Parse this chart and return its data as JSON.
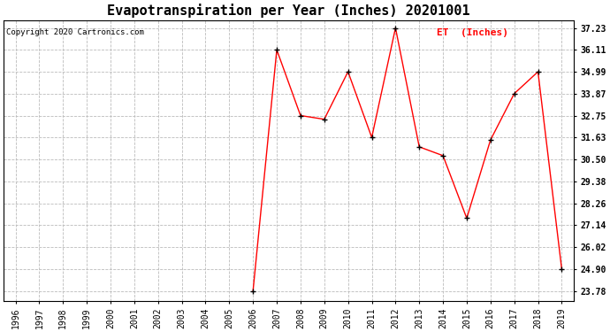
{
  "title": "Evapotranspiration per Year (Inches) 20201001",
  "copyright": "Copyright 2020 Cartronics.com",
  "legend_label": "ET  (Inches)",
  "years": [
    1996,
    1997,
    1998,
    1999,
    2000,
    2001,
    2002,
    2003,
    2004,
    2005,
    2006,
    2007,
    2008,
    2009,
    2010,
    2011,
    2012,
    2013,
    2014,
    2015,
    2016,
    2017,
    2018,
    2019
  ],
  "data_years": [
    2006,
    2007,
    2008,
    2009,
    2010,
    2011,
    2012,
    2013,
    2014,
    2015,
    2016,
    2017,
    2018,
    2019
  ],
  "values": [
    23.78,
    36.11,
    32.75,
    32.56,
    34.99,
    31.63,
    37.23,
    31.15,
    30.7,
    27.5,
    31.5,
    33.87,
    34.99,
    24.9
  ],
  "yticks": [
    23.78,
    24.9,
    26.02,
    27.14,
    28.26,
    29.38,
    30.5,
    31.63,
    32.75,
    33.87,
    34.99,
    36.11,
    37.23
  ],
  "ytick_labels": [
    "23.78",
    "24.90",
    "26.02",
    "27.14",
    "28.26",
    "29.38",
    "30.50",
    "31.63",
    "32.75",
    "33.87",
    "34.99",
    "36.11",
    "37.23"
  ],
  "ymin": 23.78,
  "ymax": 37.23,
  "line_color": "#FF0000",
  "marker_color": "#000000",
  "grid_color": "#BBBBBB",
  "bg_color": "#FFFFFF",
  "title_fontsize": 11,
  "tick_fontsize": 7,
  "copyright_fontsize": 6.5,
  "legend_fontsize": 8,
  "legend_color": "#FF0000",
  "copyright_color": "#000000"
}
